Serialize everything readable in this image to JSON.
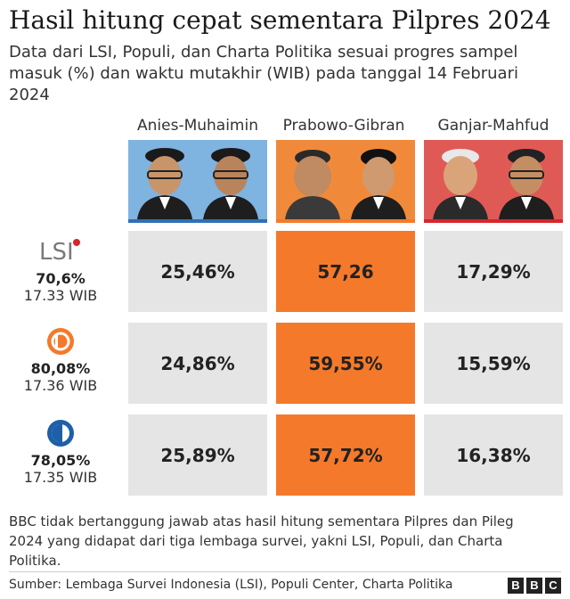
{
  "title": "Hasil hitung cepat sementara Pilpres 2024",
  "subtitle": "Data dari LSI, Populi, dan Charta Politika sesuai progres sampel masuk (%) dan waktu mutakhir (WIB) pada tanggal 14 Februari 2024",
  "colors": {
    "highlight": "#f5792a",
    "cell_gray": "#e5e5e5",
    "anies_bar": "#2f6fb5",
    "prabowo_bar": "#f5792a",
    "ganjar_bar": "#d6262b"
  },
  "chart_data": {
    "type": "table",
    "columns": [
      "Anies-Muhaimin",
      "Prabowo-Gibran",
      "Ganjar-Mahfud"
    ],
    "rows": [
      {
        "pollster_logo": "LSI",
        "sample": "70,6%",
        "time": "17.33 WIB",
        "values": [
          "25,46%",
          "57,26",
          "17,29%"
        ]
      },
      {
        "pollster_logo": "Populi",
        "sample": "80,08%",
        "time": "17.36 WIB",
        "values": [
          "24,86%",
          "59,55%",
          "15,59%"
        ]
      },
      {
        "pollster_logo": "Charta Politika",
        "sample": "78,05%",
        "time": "17.35 WIB",
        "values": [
          "25,89%",
          "57,72%",
          "16,38%"
        ]
      }
    ],
    "highlight_column": "Prabowo-Gibran"
  },
  "footnote": "BBC tidak bertanggung jawab atas hasil hitung sementara Pilpres dan Pileg 2024 yang didapat dari tiga lembaga survei, yakni LSI, Populi, dan Charta Politika.",
  "source": "Sumber: Lembaga Survei Indonesia (LSI), Populi Center, Charta Politika",
  "brand": [
    "B",
    "B",
    "C"
  ]
}
